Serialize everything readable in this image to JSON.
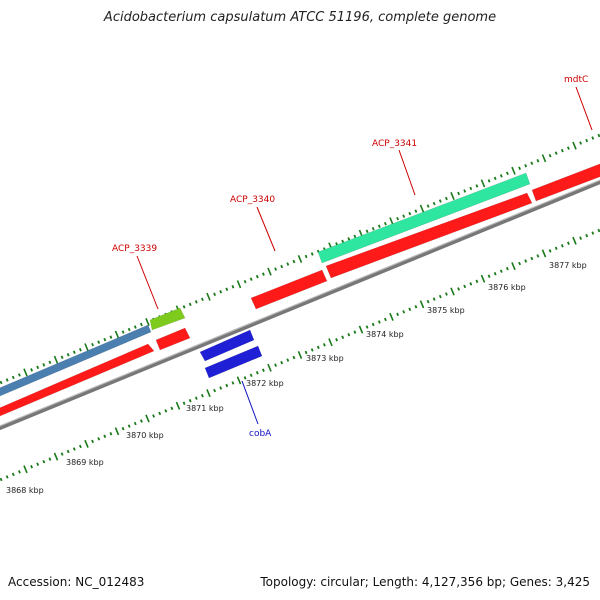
{
  "title": "Acidobacterium capsulatum ATCC 51196, complete genome",
  "footer": {
    "accession": "Accession: NC_012483",
    "summary": "Topology: circular; Length: 4,127,356 bp; Genes: 3,425"
  },
  "colors": {
    "forward_cds": "#ff1a1a",
    "reverse_cds": "#1f1fd6",
    "steel_gene": "#4a7fb0",
    "lime_gene": "#7ecb1e",
    "teal_gene": "#2ee6a0",
    "backbone": "#888888",
    "tick": "#1a7a1a",
    "label_red": "#cc0000",
    "label_blue": "#1010c0"
  },
  "scale_ticks": [
    "3868 kbp",
    "3869 kbp",
    "3870 kbp",
    "3871 kbp",
    "3872 kbp",
    "3873 kbp",
    "3874 kbp",
    "3875 kbp",
    "3876 kbp",
    "3877 kbp"
  ],
  "gene_labels": [
    {
      "name": "ACP_3339",
      "color": "label_red"
    },
    {
      "name": "ACP_3340",
      "color": "label_red"
    },
    {
      "name": "ACP_3341",
      "color": "label_red"
    },
    {
      "name": "mdtC",
      "color": "label_red"
    },
    {
      "name": "cobA",
      "color": "label_blue"
    }
  ]
}
